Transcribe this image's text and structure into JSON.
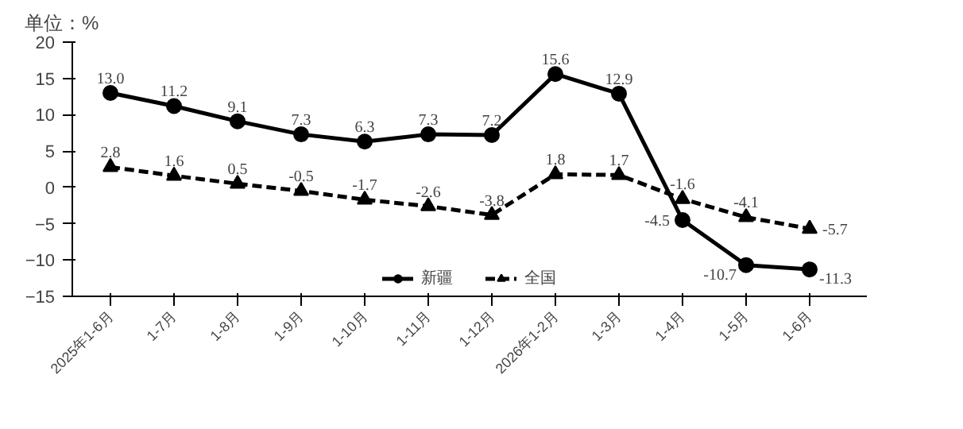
{
  "chart_data": {
    "type": "line",
    "ylabel": "单位：%",
    "categories": [
      "2025年1-6月",
      "1-7月",
      "1-8月",
      "1-9月",
      "1-10月",
      "1-11月",
      "1-12月",
      "2026年1-2月",
      "1-3月",
      "1-4月",
      "1-5月",
      "1-6月"
    ],
    "series": [
      {
        "name": "新疆",
        "color": "#000000",
        "marker": "circle",
        "line_style": "solid",
        "values": [
          13.0,
          11.2,
          9.1,
          7.3,
          6.3,
          7.3,
          7.2,
          15.6,
          12.9,
          -4.5,
          -10.7,
          -11.3
        ],
        "value_labels": [
          "13.0",
          "11.2",
          "9.1",
          "7.3",
          "6.3",
          "7.3",
          "7.2",
          "15.6",
          "12.9",
          "-4.5",
          "-10.7",
          "-11.3"
        ]
      },
      {
        "name": "全国",
        "color": "#000000",
        "marker": "triangle",
        "line_style": "dashed",
        "values": [
          2.8,
          1.6,
          0.5,
          -0.5,
          -1.7,
          -2.6,
          -3.8,
          1.8,
          1.7,
          -1.6,
          -4.1,
          -5.7
        ],
        "value_labels": [
          "2.8",
          "1.6",
          "0.5",
          "-0.5",
          "-1.7",
          "-2.6",
          "-3.8",
          "1.8",
          "1.7",
          "-1.6",
          "-4.1",
          "-5.7"
        ]
      }
    ],
    "ylim": [
      -15,
      20
    ],
    "yticks": [
      -15,
      -10,
      -5,
      0,
      5,
      10,
      15,
      20
    ],
    "grid": false,
    "legend": "bottom"
  }
}
